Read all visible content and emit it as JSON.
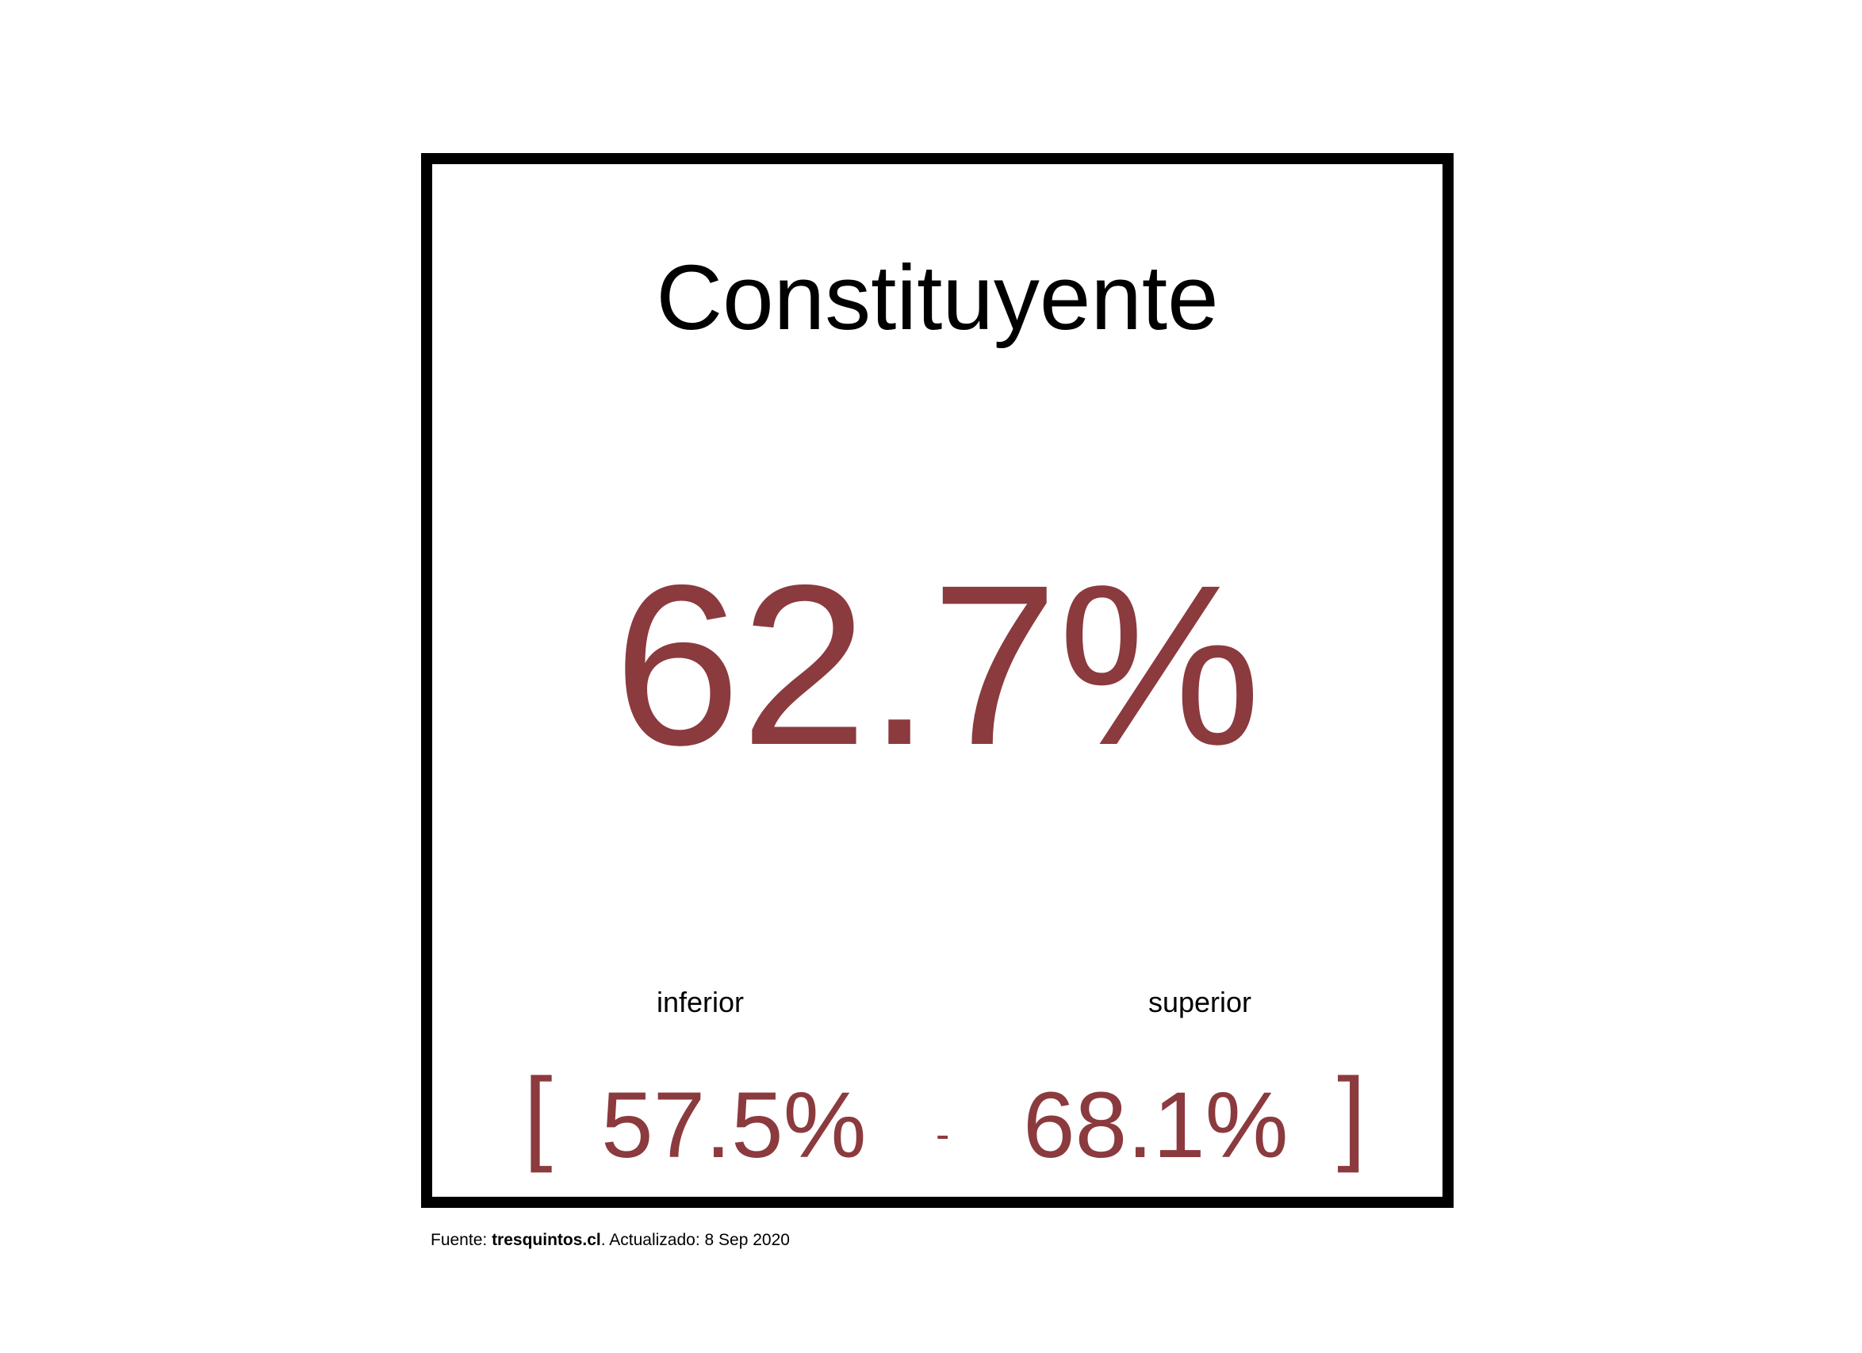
{
  "chart_data": {
    "type": "table",
    "title": "Constituyente",
    "value": "62.7%",
    "lower_label": "inferior",
    "upper_label": "superior",
    "lower_value": "57.5%",
    "upper_value": "68.1%",
    "bracket_open": "[",
    "bracket_close": "]",
    "range_separator": "-"
  },
  "footer": {
    "source_prefix": "Fuente: ",
    "source_name": "tresquintos.cl",
    "updated": ". Actualizado: 8 Sep 2020"
  },
  "colors": {
    "accent": "#8b3a3e",
    "border": "#000000",
    "text": "#000000"
  }
}
